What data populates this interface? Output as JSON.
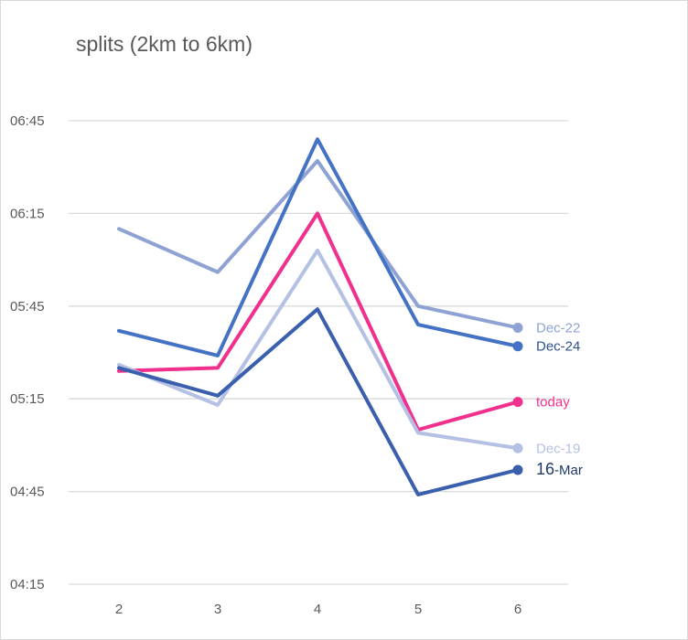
{
  "chart_data": {
    "type": "line",
    "title": "splits (2km to 6km)",
    "xlabel": "",
    "ylabel": "",
    "x": [
      2,
      3,
      4,
      5,
      6
    ],
    "yticks": [
      "04:15",
      "04:45",
      "05:15",
      "05:45",
      "06:15",
      "06:45"
    ],
    "yrange_seconds": [
      255,
      405
    ],
    "grid": true,
    "series": [
      {
        "name": "Dec-22",
        "color": "#8fa2d4",
        "label_color": "#8fa2d4",
        "values_seconds": [
          370,
          356,
          392,
          345,
          338
        ]
      },
      {
        "name": "Dec-24",
        "color": "#4472c4",
        "label_color": "#2f4f8f",
        "values_seconds": [
          337,
          329,
          399,
          339,
          332
        ]
      },
      {
        "name": "today",
        "color": "#f0308c",
        "label_color": "#f0308c",
        "values_seconds": [
          324,
          325,
          375,
          305,
          314
        ]
      },
      {
        "name": "Dec-19",
        "color": "#b4c0e4",
        "label_color": "#b4c0e4",
        "values_seconds": [
          326,
          313,
          363,
          304,
          299
        ]
      },
      {
        "name": "16-Mar",
        "color": "#3a5fad",
        "label_color": "#1f3a6b",
        "values_seconds": [
          325,
          316,
          344,
          284,
          292
        ]
      }
    ]
  }
}
